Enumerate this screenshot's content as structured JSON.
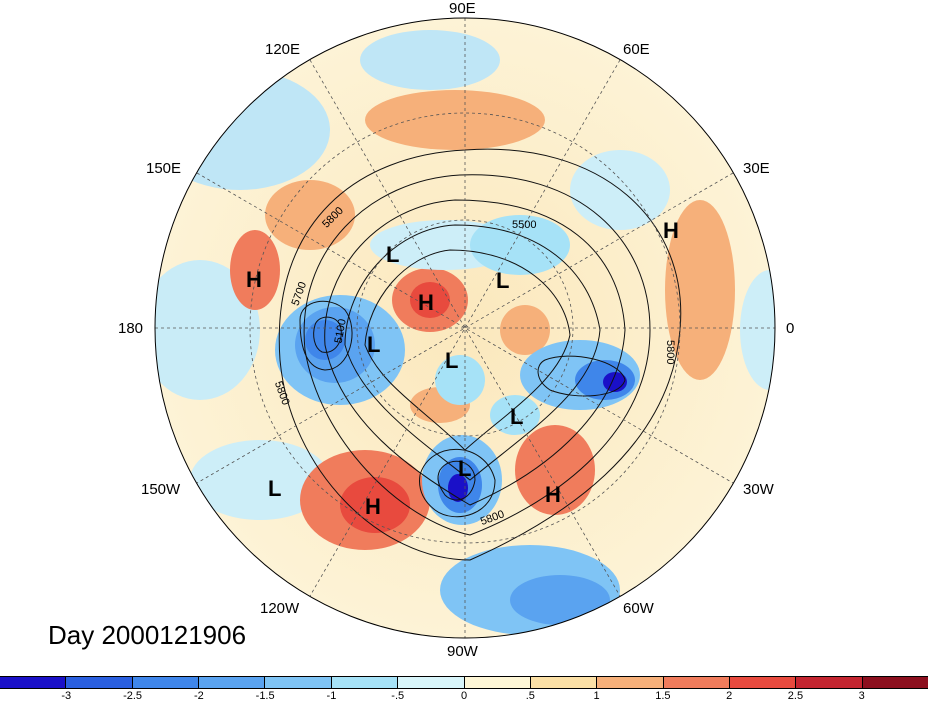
{
  "title": "Day 2000121906",
  "longitude_labels": {
    "north": "90E",
    "ne1": "60E",
    "ne2": "30E",
    "east": "0",
    "se1": "30W",
    "se2": "60W",
    "south": "90W",
    "sw1": "120W",
    "sw2": "150W",
    "west": "180",
    "nw1": "150E",
    "nw2": "120E"
  },
  "pressure_centers": [
    {
      "type": "H",
      "label": "H"
    },
    {
      "type": "H",
      "label": "H"
    },
    {
      "type": "H",
      "label": "H"
    },
    {
      "type": "H",
      "label": "H"
    },
    {
      "type": "H",
      "label": "H"
    },
    {
      "type": "L",
      "label": "L"
    },
    {
      "type": "L",
      "label": "L"
    },
    {
      "type": "L",
      "label": "L"
    },
    {
      "type": "L",
      "label": "L"
    },
    {
      "type": "L",
      "label": "L"
    },
    {
      "type": "L",
      "label": "L"
    },
    {
      "type": "L",
      "label": "L"
    }
  ],
  "contour_labels": [
    "5800",
    "5700",
    "5500",
    "5100",
    "5800",
    "5800",
    "5800"
  ],
  "colorbar": {
    "ticks": [
      "-3",
      "-2.5",
      "-2",
      "-1.5",
      "-1",
      "-.5",
      "0",
      ".5",
      "1",
      "1.5",
      "2",
      "2.5",
      "3"
    ],
    "colors": [
      "#1a10c8",
      "#2a5fe0",
      "#3f86ea",
      "#5aa3f0",
      "#7fc4f5",
      "#a6e2f7",
      "#d8f5fa",
      "#fdf6d6",
      "#fbe0a6",
      "#f6b07a",
      "#f07c5c",
      "#e84a3e",
      "#c42530",
      "#8c0f1e"
    ]
  }
}
